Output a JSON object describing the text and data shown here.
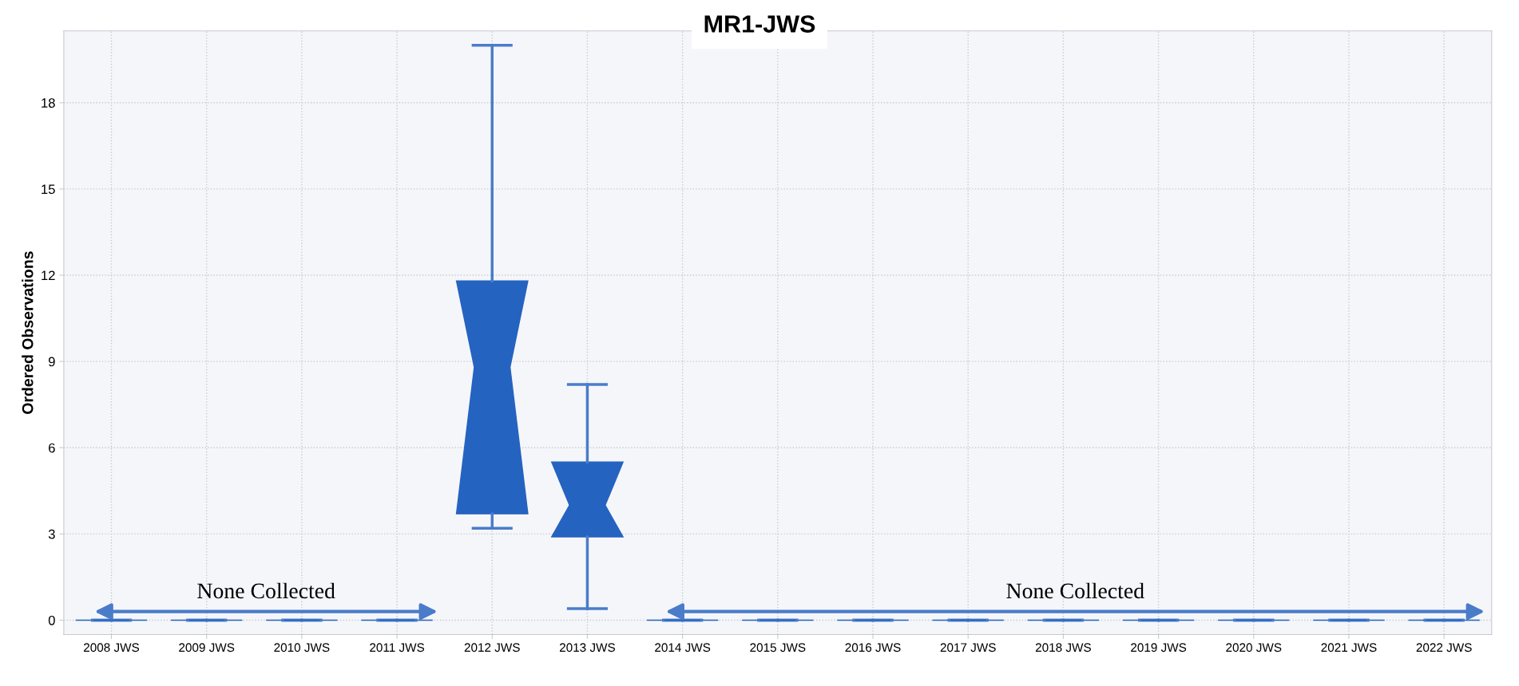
{
  "chart_data": {
    "type": "box",
    "title": "MR1-JWS",
    "ylabel": "Ordered Observations",
    "categories": [
      "2008 JWS",
      "2009 JWS",
      "2010 JWS",
      "2011 JWS",
      "2012 JWS",
      "2013 JWS",
      "2014 JWS",
      "2015 JWS",
      "2016 JWS",
      "2017 JWS",
      "2018 JWS",
      "2019 JWS",
      "2020 JWS",
      "2021 JWS",
      "2022 JWS"
    ],
    "boxes": [
      {
        "low": 0,
        "q1": 0,
        "median": 0,
        "q3": 0,
        "high": 0
      },
      {
        "low": 0,
        "q1": 0,
        "median": 0,
        "q3": 0,
        "high": 0
      },
      {
        "low": 0,
        "q1": 0,
        "median": 0,
        "q3": 0,
        "high": 0
      },
      {
        "low": 0,
        "q1": 0,
        "median": 0,
        "q3": 0,
        "high": 0
      },
      {
        "low": 3.2,
        "q1": 3.7,
        "median": 8.8,
        "q3": 11.8,
        "high": 20
      },
      {
        "low": 0.4,
        "q1": 2.9,
        "median": 4.0,
        "q3": 5.5,
        "high": 8.2
      },
      {
        "low": 0,
        "q1": 0,
        "median": 0,
        "q3": 0,
        "high": 0
      },
      {
        "low": 0,
        "q1": 0,
        "median": 0,
        "q3": 0,
        "high": 0
      },
      {
        "low": 0,
        "q1": 0,
        "median": 0,
        "q3": 0,
        "high": 0
      },
      {
        "low": 0,
        "q1": 0,
        "median": 0,
        "q3": 0,
        "high": 0
      },
      {
        "low": 0,
        "q1": 0,
        "median": 0,
        "q3": 0,
        "high": 0
      },
      {
        "low": 0,
        "q1": 0,
        "median": 0,
        "q3": 0,
        "high": 0
      },
      {
        "low": 0,
        "q1": 0,
        "median": 0,
        "q3": 0,
        "high": 0
      },
      {
        "low": 0,
        "q1": 0,
        "median": 0,
        "q3": 0,
        "high": 0
      },
      {
        "low": 0,
        "q1": 0,
        "median": 0,
        "q3": 0,
        "high": 0
      }
    ],
    "color": "#2563c0",
    "ylim": [
      -0.5,
      20.5
    ],
    "yticks": [
      0,
      3,
      6,
      9,
      12,
      15,
      18
    ],
    "grid": true,
    "annotations": [
      "None Collected",
      "None Collected"
    ]
  }
}
